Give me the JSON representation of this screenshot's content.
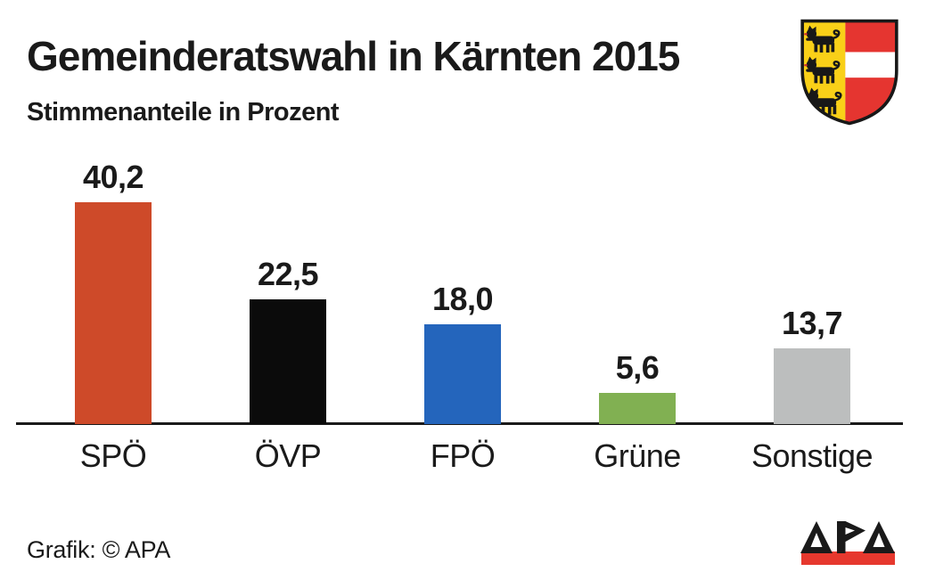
{
  "header": {
    "title": "Gemeinderatswahl in Kärnten 2015",
    "subtitle": "Stimmenanteile in Prozent"
  },
  "chart_data": {
    "type": "bar",
    "title": "Gemeinderatswahl in Kärnten 2015",
    "subtitle": "Stimmenanteile in Prozent",
    "unit": "percent",
    "categories": [
      "SPÖ",
      "ÖVP",
      "FPÖ",
      "Grüne",
      "Sonstige"
    ],
    "values": [
      40.2,
      22.5,
      18.0,
      5.6,
      13.7
    ],
    "value_labels": [
      "40,2",
      "22,5",
      "18,0",
      "5,6",
      "13,7"
    ],
    "bar_colors": [
      "#CE4A29",
      "#0B0B0B",
      "#2465BC",
      "#81B052",
      "#BCBEBE"
    ],
    "ylim": [
      0,
      45
    ],
    "grid": false,
    "legend": false,
    "value_labels_position": "above-bars",
    "baseline_color": "#1A1A1A"
  },
  "footer": {
    "credit": "Grafik: © APA"
  },
  "coat_of_arms": {
    "name": "Kärnten",
    "gold": "#F9D018",
    "red": "#E53530",
    "white": "#FFFFFF",
    "outline": "#181818",
    "tongue_red": "#D0342C"
  },
  "apa_logo": {
    "label": "APA",
    "bar_color": "#E6382E",
    "text_color": "#1A1A1A"
  }
}
